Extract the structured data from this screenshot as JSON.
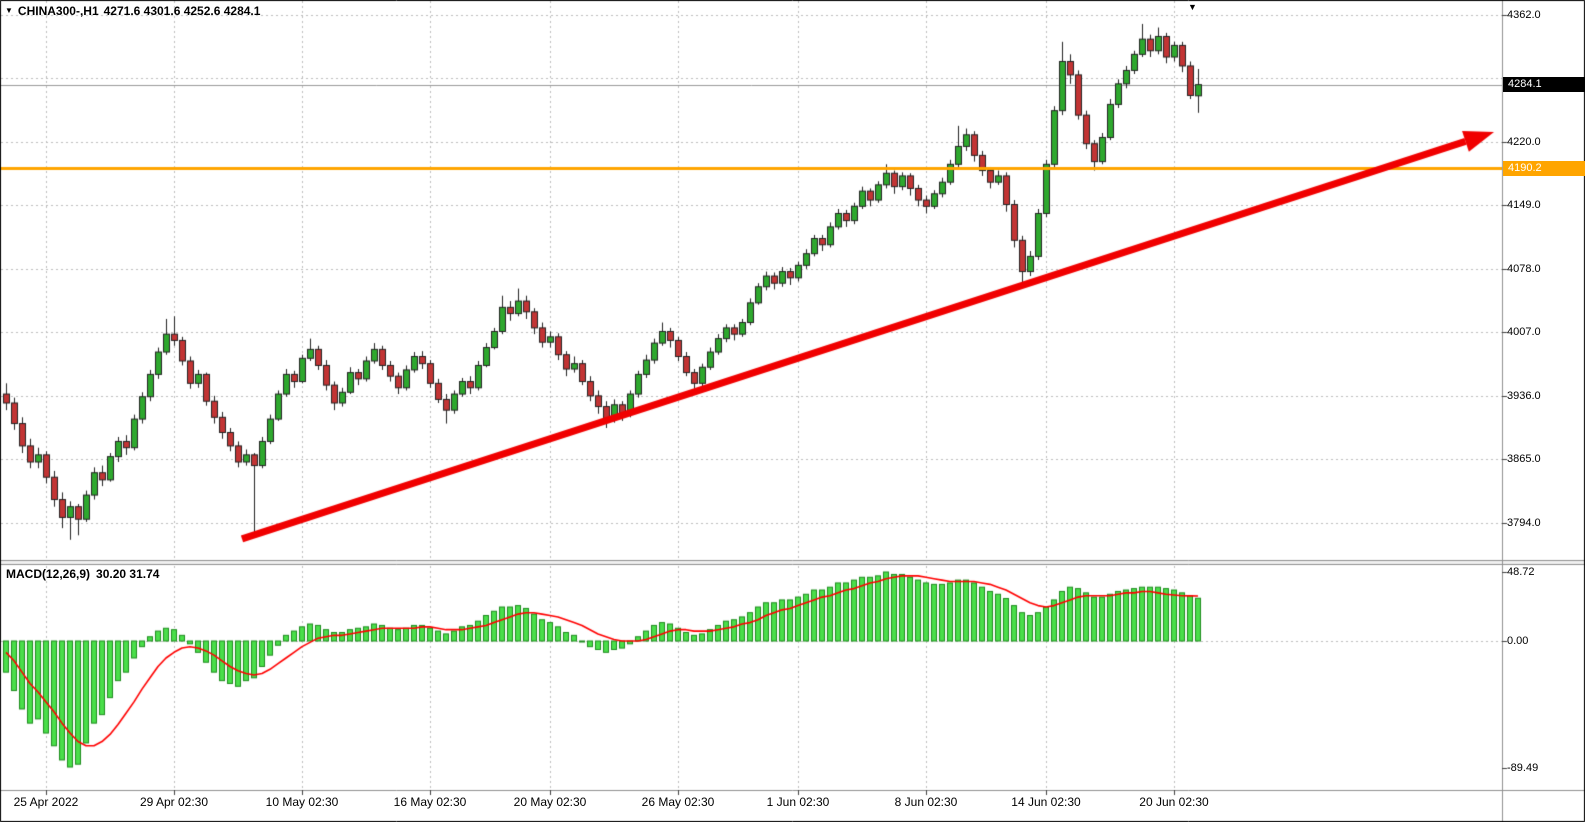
{
  "window_chrome": {
    "shift_marker": "▼"
  },
  "header": {
    "collapse_icon": "▼",
    "symbol": "CHINA300-,H1",
    "ohlc_values": "4271.6 4301.6 4252.6 4284.1"
  },
  "indicator": {
    "label": "MACD(12,26,9)",
    "values": "30.20 31.74"
  },
  "price_scale": {
    "labels": [
      {
        "text": "4362.0",
        "value": 4362.0
      },
      {
        "text": "4220.0",
        "value": 4220.0
      },
      {
        "text": "4149.0",
        "value": 4149.0
      },
      {
        "text": "4078.0",
        "value": 4078.0
      },
      {
        "text": "4007.0",
        "value": 4007.0
      },
      {
        "text": "3936.0",
        "value": 3936.0
      },
      {
        "text": "3865.0",
        "value": 3865.0
      },
      {
        "text": "3794.0",
        "value": 3794.0
      }
    ],
    "current_badge": {
      "text": "4284.1",
      "value": 4284.1,
      "bg": "#000000",
      "fg": "#ffffff"
    },
    "level_badge": {
      "text": "4190.2",
      "value": 4190.2,
      "bg": "#ffa500",
      "fg": "#ffffff"
    }
  },
  "macd_scale": {
    "labels": [
      {
        "text": "48.72",
        "value": 48.72
      },
      {
        "text": "0.00",
        "value": 0
      },
      {
        "text": "-89.49",
        "value": -89.49
      }
    ]
  },
  "time_axis": {
    "labels": [
      {
        "text": "25 Apr 2022",
        "bar": 5
      },
      {
        "text": "29 Apr 02:30",
        "bar": 21
      },
      {
        "text": "10 May 02:30",
        "bar": 37
      },
      {
        "text": "16 May 02:30",
        "bar": 53
      },
      {
        "text": "20 May 02:30",
        "bar": 68
      },
      {
        "text": "26 May 02:30",
        "bar": 84
      },
      {
        "text": "1 Jun 02:30",
        "bar": 99
      },
      {
        "text": "8 Jun 02:30",
        "bar": 115
      },
      {
        "text": "14 Jun 02:30",
        "bar": 130
      },
      {
        "text": "20 Jun 02:30",
        "bar": 146
      }
    ]
  },
  "chart_data": {
    "type": "candlestick",
    "symbol": "CHINA300-",
    "timeframe": "H1",
    "current_bar": {
      "open": 4271.6,
      "high": 4301.6,
      "low": 4252.6,
      "close": 4284.1
    },
    "price_axis_range": [
      3753,
      4379
    ],
    "price_gridlines": [
      4362,
      4291,
      4220,
      4149,
      4078,
      4007,
      3936,
      3865,
      3794
    ],
    "macd_axis_range": [
      -104,
      54
    ],
    "macd_current": {
      "macd": 30.2,
      "signal": 31.74
    },
    "candles": [
      [
        3938,
        3950,
        3920,
        3928
      ],
      [
        3928,
        3934,
        3898,
        3905
      ],
      [
        3905,
        3912,
        3872,
        3880
      ],
      [
        3880,
        3888,
        3855,
        3862
      ],
      [
        3862,
        3878,
        3855,
        3870
      ],
      [
        3870,
        3874,
        3838,
        3845
      ],
      [
        3845,
        3852,
        3812,
        3820
      ],
      [
        3820,
        3828,
        3788,
        3800
      ],
      [
        3800,
        3818,
        3775,
        3812
      ],
      [
        3812,
        3815,
        3780,
        3798
      ],
      [
        3798,
        3830,
        3795,
        3825
      ],
      [
        3825,
        3856,
        3820,
        3850
      ],
      [
        3850,
        3858,
        3835,
        3842
      ],
      [
        3842,
        3872,
        3840,
        3868
      ],
      [
        3868,
        3890,
        3862,
        3885
      ],
      [
        3885,
        3892,
        3870,
        3878
      ],
      [
        3878,
        3915,
        3875,
        3910
      ],
      [
        3910,
        3940,
        3905,
        3935
      ],
      [
        3935,
        3965,
        3930,
        3960
      ],
      [
        3960,
        3990,
        3955,
        3985
      ],
      [
        3985,
        4022,
        3982,
        4005
      ],
      [
        4005,
        4025,
        3992,
        3998
      ],
      [
        3998,
        4002,
        3970,
        3975
      ],
      [
        3975,
        3980,
        3944,
        3950
      ],
      [
        3950,
        3965,
        3945,
        3960
      ],
      [
        3960,
        3962,
        3925,
        3930
      ],
      [
        3930,
        3936,
        3905,
        3912
      ],
      [
        3912,
        3918,
        3888,
        3895
      ],
      [
        3895,
        3900,
        3874,
        3880
      ],
      [
        3880,
        3885,
        3856,
        3862
      ],
      [
        3862,
        3876,
        3858,
        3870
      ],
      [
        3870,
        3872,
        3780,
        3858
      ],
      [
        3858,
        3890,
        3855,
        3885
      ],
      [
        3885,
        3915,
        3882,
        3910
      ],
      [
        3910,
        3942,
        3908,
        3938
      ],
      [
        3938,
        3966,
        3935,
        3960
      ],
      [
        3960,
        3964,
        3945,
        3952
      ],
      [
        3952,
        3982,
        3950,
        3978
      ],
      [
        3978,
        4000,
        3975,
        3988
      ],
      [
        3988,
        3992,
        3965,
        3970
      ],
      [
        3970,
        3976,
        3942,
        3948
      ],
      [
        3948,
        3952,
        3920,
        3928
      ],
      [
        3928,
        3945,
        3924,
        3940
      ],
      [
        3940,
        3968,
        3938,
        3962
      ],
      [
        3962,
        3966,
        3948,
        3955
      ],
      [
        3955,
        3980,
        3952,
        3975
      ],
      [
        3975,
        3995,
        3972,
        3988
      ],
      [
        3988,
        3992,
        3965,
        3970
      ],
      [
        3970,
        3975,
        3952,
        3958
      ],
      [
        3958,
        3962,
        3938,
        3945
      ],
      [
        3945,
        3970,
        3942,
        3965
      ],
      [
        3965,
        3985,
        3962,
        3980
      ],
      [
        3980,
        3986,
        3966,
        3972
      ],
      [
        3972,
        3976,
        3945,
        3950
      ],
      [
        3950,
        3955,
        3928,
        3932
      ],
      [
        3932,
        3938,
        3905,
        3920
      ],
      [
        3920,
        3942,
        3916,
        3938
      ],
      [
        3938,
        3956,
        3935,
        3952
      ],
      [
        3952,
        3958,
        3938,
        3945
      ],
      [
        3945,
        3975,
        3942,
        3970
      ],
      [
        3970,
        3995,
        3968,
        3990
      ],
      [
        3990,
        4012,
        3988,
        4008
      ],
      [
        4008,
        4048,
        4005,
        4035
      ],
      [
        4035,
        4042,
        4020,
        4028
      ],
      [
        4028,
        4056,
        4025,
        4042
      ],
      [
        4042,
        4048,
        4022,
        4030
      ],
      [
        4030,
        4034,
        4005,
        4012
      ],
      [
        4012,
        4018,
        3990,
        3996
      ],
      [
        3996,
        4008,
        3990,
        4002
      ],
      [
        4002,
        4006,
        3976,
        3982
      ],
      [
        3982,
        3986,
        3958,
        3966
      ],
      [
        3966,
        3980,
        3962,
        3972
      ],
      [
        3972,
        3976,
        3948,
        3952
      ],
      [
        3952,
        3958,
        3930,
        3936
      ],
      [
        3936,
        3942,
        3916,
        3924
      ],
      [
        3924,
        3930,
        3900,
        3910
      ],
      [
        3910,
        3932,
        3906,
        3926
      ],
      [
        3926,
        3930,
        3908,
        3916
      ],
      [
        3916,
        3942,
        3912,
        3938
      ],
      [
        3938,
        3964,
        3934,
        3960
      ],
      [
        3960,
        3982,
        3956,
        3976
      ],
      [
        3976,
        4000,
        3972,
        3995
      ],
      [
        3995,
        4018,
        3992,
        4008
      ],
      [
        4008,
        4012,
        3990,
        3998
      ],
      [
        3998,
        4002,
        3975,
        3980
      ],
      [
        3980,
        3985,
        3958,
        3962
      ],
      [
        3962,
        3966,
        3944,
        3950
      ],
      [
        3950,
        3972,
        3946,
        3968
      ],
      [
        3968,
        3990,
        3965,
        3985
      ],
      [
        3985,
        4005,
        3982,
        4000
      ],
      [
        4000,
        4016,
        3996,
        4012
      ],
      [
        4012,
        4016,
        3998,
        4005
      ],
      [
        4005,
        4022,
        4002,
        4018
      ],
      [
        4018,
        4045,
        4015,
        4040
      ],
      [
        4040,
        4062,
        4038,
        4058
      ],
      [
        4058,
        4075,
        4054,
        4070
      ],
      [
        4070,
        4074,
        4055,
        4062
      ],
      [
        4062,
        4080,
        4058,
        4075
      ],
      [
        4075,
        4079,
        4060,
        4068
      ],
      [
        4068,
        4086,
        4064,
        4082
      ],
      [
        4082,
        4100,
        4078,
        4095
      ],
      [
        4095,
        4116,
        4092,
        4112
      ],
      [
        4112,
        4116,
        4098,
        4105
      ],
      [
        4105,
        4130,
        4102,
        4125
      ],
      [
        4125,
        4145,
        4122,
        4140
      ],
      [
        4140,
        4144,
        4125,
        4132
      ],
      [
        4132,
        4152,
        4128,
        4148
      ],
      [
        4148,
        4170,
        4145,
        4165
      ],
      [
        4165,
        4168,
        4148,
        4155
      ],
      [
        4155,
        4176,
        4152,
        4172
      ],
      [
        4172,
        4195,
        4168,
        4185
      ],
      [
        4185,
        4188,
        4162,
        4170
      ],
      [
        4170,
        4186,
        4166,
        4182
      ],
      [
        4182,
        4185,
        4160,
        4168
      ],
      [
        4168,
        4172,
        4148,
        4155
      ],
      [
        4155,
        4160,
        4140,
        4148
      ],
      [
        4148,
        4166,
        4145,
        4162
      ],
      [
        4162,
        4180,
        4158,
        4175
      ],
      [
        4175,
        4200,
        4172,
        4195
      ],
      [
        4195,
        4238,
        4192,
        4215
      ],
      [
        4215,
        4235,
        4210,
        4228
      ],
      [
        4228,
        4232,
        4198,
        4205
      ],
      [
        4205,
        4210,
        4182,
        4188
      ],
      [
        4188,
        4192,
        4168,
        4175
      ],
      [
        4175,
        4188,
        4172,
        4182
      ],
      [
        4182,
        4186,
        4142,
        4150
      ],
      [
        4150,
        4155,
        4102,
        4110
      ],
      [
        4110,
        4115,
        4058,
        4075
      ],
      [
        4075,
        4098,
        4070,
        4092
      ],
      [
        4092,
        4145,
        4088,
        4140
      ],
      [
        4140,
        4200,
        4136,
        4195
      ],
      [
        4195,
        4260,
        4192,
        4255
      ],
      [
        4255,
        4332,
        4250,
        4310
      ],
      [
        4310,
        4318,
        4285,
        4295
      ],
      [
        4295,
        4300,
        4245,
        4250
      ],
      [
        4250,
        4255,
        4212,
        4218
      ],
      [
        4218,
        4222,
        4188,
        4198
      ],
      [
        4198,
        4230,
        4195,
        4225
      ],
      [
        4225,
        4268,
        4222,
        4262
      ],
      [
        4262,
        4290,
        4258,
        4285
      ],
      [
        4285,
        4305,
        4280,
        4300
      ],
      [
        4300,
        4322,
        4296,
        4318
      ],
      [
        4318,
        4352,
        4315,
        4335
      ],
      [
        4335,
        4340,
        4315,
        4322
      ],
      [
        4322,
        4348,
        4318,
        4338
      ],
      [
        4338,
        4342,
        4308,
        4315
      ],
      [
        4315,
        4332,
        4310,
        4328
      ],
      [
        4328,
        4332,
        4298,
        4305
      ],
      [
        4305,
        4310,
        4268,
        4272
      ],
      [
        4271.6,
        4301.6,
        4252.6,
        4284.1
      ]
    ],
    "macd": {
      "hist": [
        -22,
        -35,
        -48,
        -58,
        -55,
        -65,
        -74,
        -84,
        -89,
        -87,
        -72,
        -58,
        -52,
        -40,
        -28,
        -22,
        -12,
        -4,
        3,
        7,
        9,
        8,
        4,
        -2,
        -8,
        -15,
        -22,
        -28,
        -30,
        -32,
        -28,
        -26,
        -18,
        -10,
        -3,
        4,
        7,
        10,
        12,
        11,
        8,
        6,
        6,
        8,
        9,
        10,
        12,
        11,
        9,
        8,
        9,
        11,
        11,
        9,
        7,
        5,
        7,
        10,
        11,
        14,
        18,
        21,
        24,
        24,
        25,
        23,
        19,
        15,
        13,
        10,
        6,
        4,
        0,
        -4,
        -6,
        -8,
        -6,
        -5,
        -2,
        3,
        7,
        11,
        13,
        12,
        9,
        6,
        4,
        5,
        8,
        11,
        14,
        15,
        17,
        20,
        24,
        27,
        27,
        29,
        29,
        31,
        33,
        36,
        36,
        38,
        41,
        41,
        43,
        45,
        45,
        46,
        48.72,
        47,
        47,
        45,
        43,
        41,
        40,
        40,
        41,
        43,
        43,
        41,
        38,
        35,
        33,
        30,
        25,
        20,
        18,
        20,
        24,
        29,
        35,
        38,
        37,
        34,
        31,
        31,
        33,
        35,
        36,
        37,
        38,
        38,
        38,
        37,
        36,
        34,
        32,
        30.2
      ],
      "signal": [
        -8,
        -14,
        -22,
        -30,
        -36,
        -43,
        -50,
        -58,
        -65,
        -71,
        -74,
        -74,
        -71,
        -66,
        -59,
        -51,
        -43,
        -34,
        -26,
        -18,
        -12,
        -8,
        -5,
        -4,
        -5,
        -7,
        -10,
        -14,
        -18,
        -21,
        -23,
        -24,
        -23,
        -20,
        -16,
        -12,
        -8,
        -4,
        -1,
        2,
        3,
        4,
        4,
        5,
        6,
        7,
        8,
        9,
        9,
        9,
        9,
        9,
        10,
        10,
        9,
        8,
        8,
        8,
        9,
        10,
        11,
        13,
        15,
        17,
        19,
        20,
        20,
        19,
        18,
        17,
        15,
        13,
        11,
        8,
        5,
        3,
        1,
        0,
        0,
        0,
        1,
        3,
        5,
        7,
        8,
        8,
        7,
        7,
        7,
        8,
        9,
        10,
        12,
        13,
        15,
        18,
        20,
        22,
        23,
        25,
        27,
        29,
        31,
        32,
        34,
        36,
        37,
        39,
        41,
        42,
        44,
        45,
        46,
        46,
        46,
        45,
        44,
        43,
        42,
        42,
        42,
        42,
        41,
        40,
        38,
        36,
        33,
        30,
        27,
        25,
        24,
        25,
        27,
        29,
        31,
        32,
        32,
        32,
        32,
        33,
        34,
        34,
        35,
        35,
        34,
        33,
        32.5,
        32,
        31.9,
        31.74
      ]
    },
    "annotations": {
      "trend_arrow": {
        "shape": "arrow",
        "color": "#f00000",
        "width": 7,
        "from": {
          "bar": 29.5,
          "price": 3776
        },
        "to": {
          "bar": 186,
          "price": 4231
        }
      },
      "horizontal_line": {
        "price": 4190.2,
        "color": "#ffa500",
        "width": 3
      },
      "current_price_line": {
        "price": 4284.1,
        "color": "#999999",
        "width": 1
      }
    },
    "colors": {
      "bull": "#2ea82e",
      "bear": "#c23434",
      "candle_border": "#222222",
      "hist": "#4ade4a",
      "hist_border": "#1d8c1d",
      "signal": "#ff0000",
      "grid": "#bdbdbd",
      "separator": "#909090",
      "bg": "#ffffff"
    }
  }
}
